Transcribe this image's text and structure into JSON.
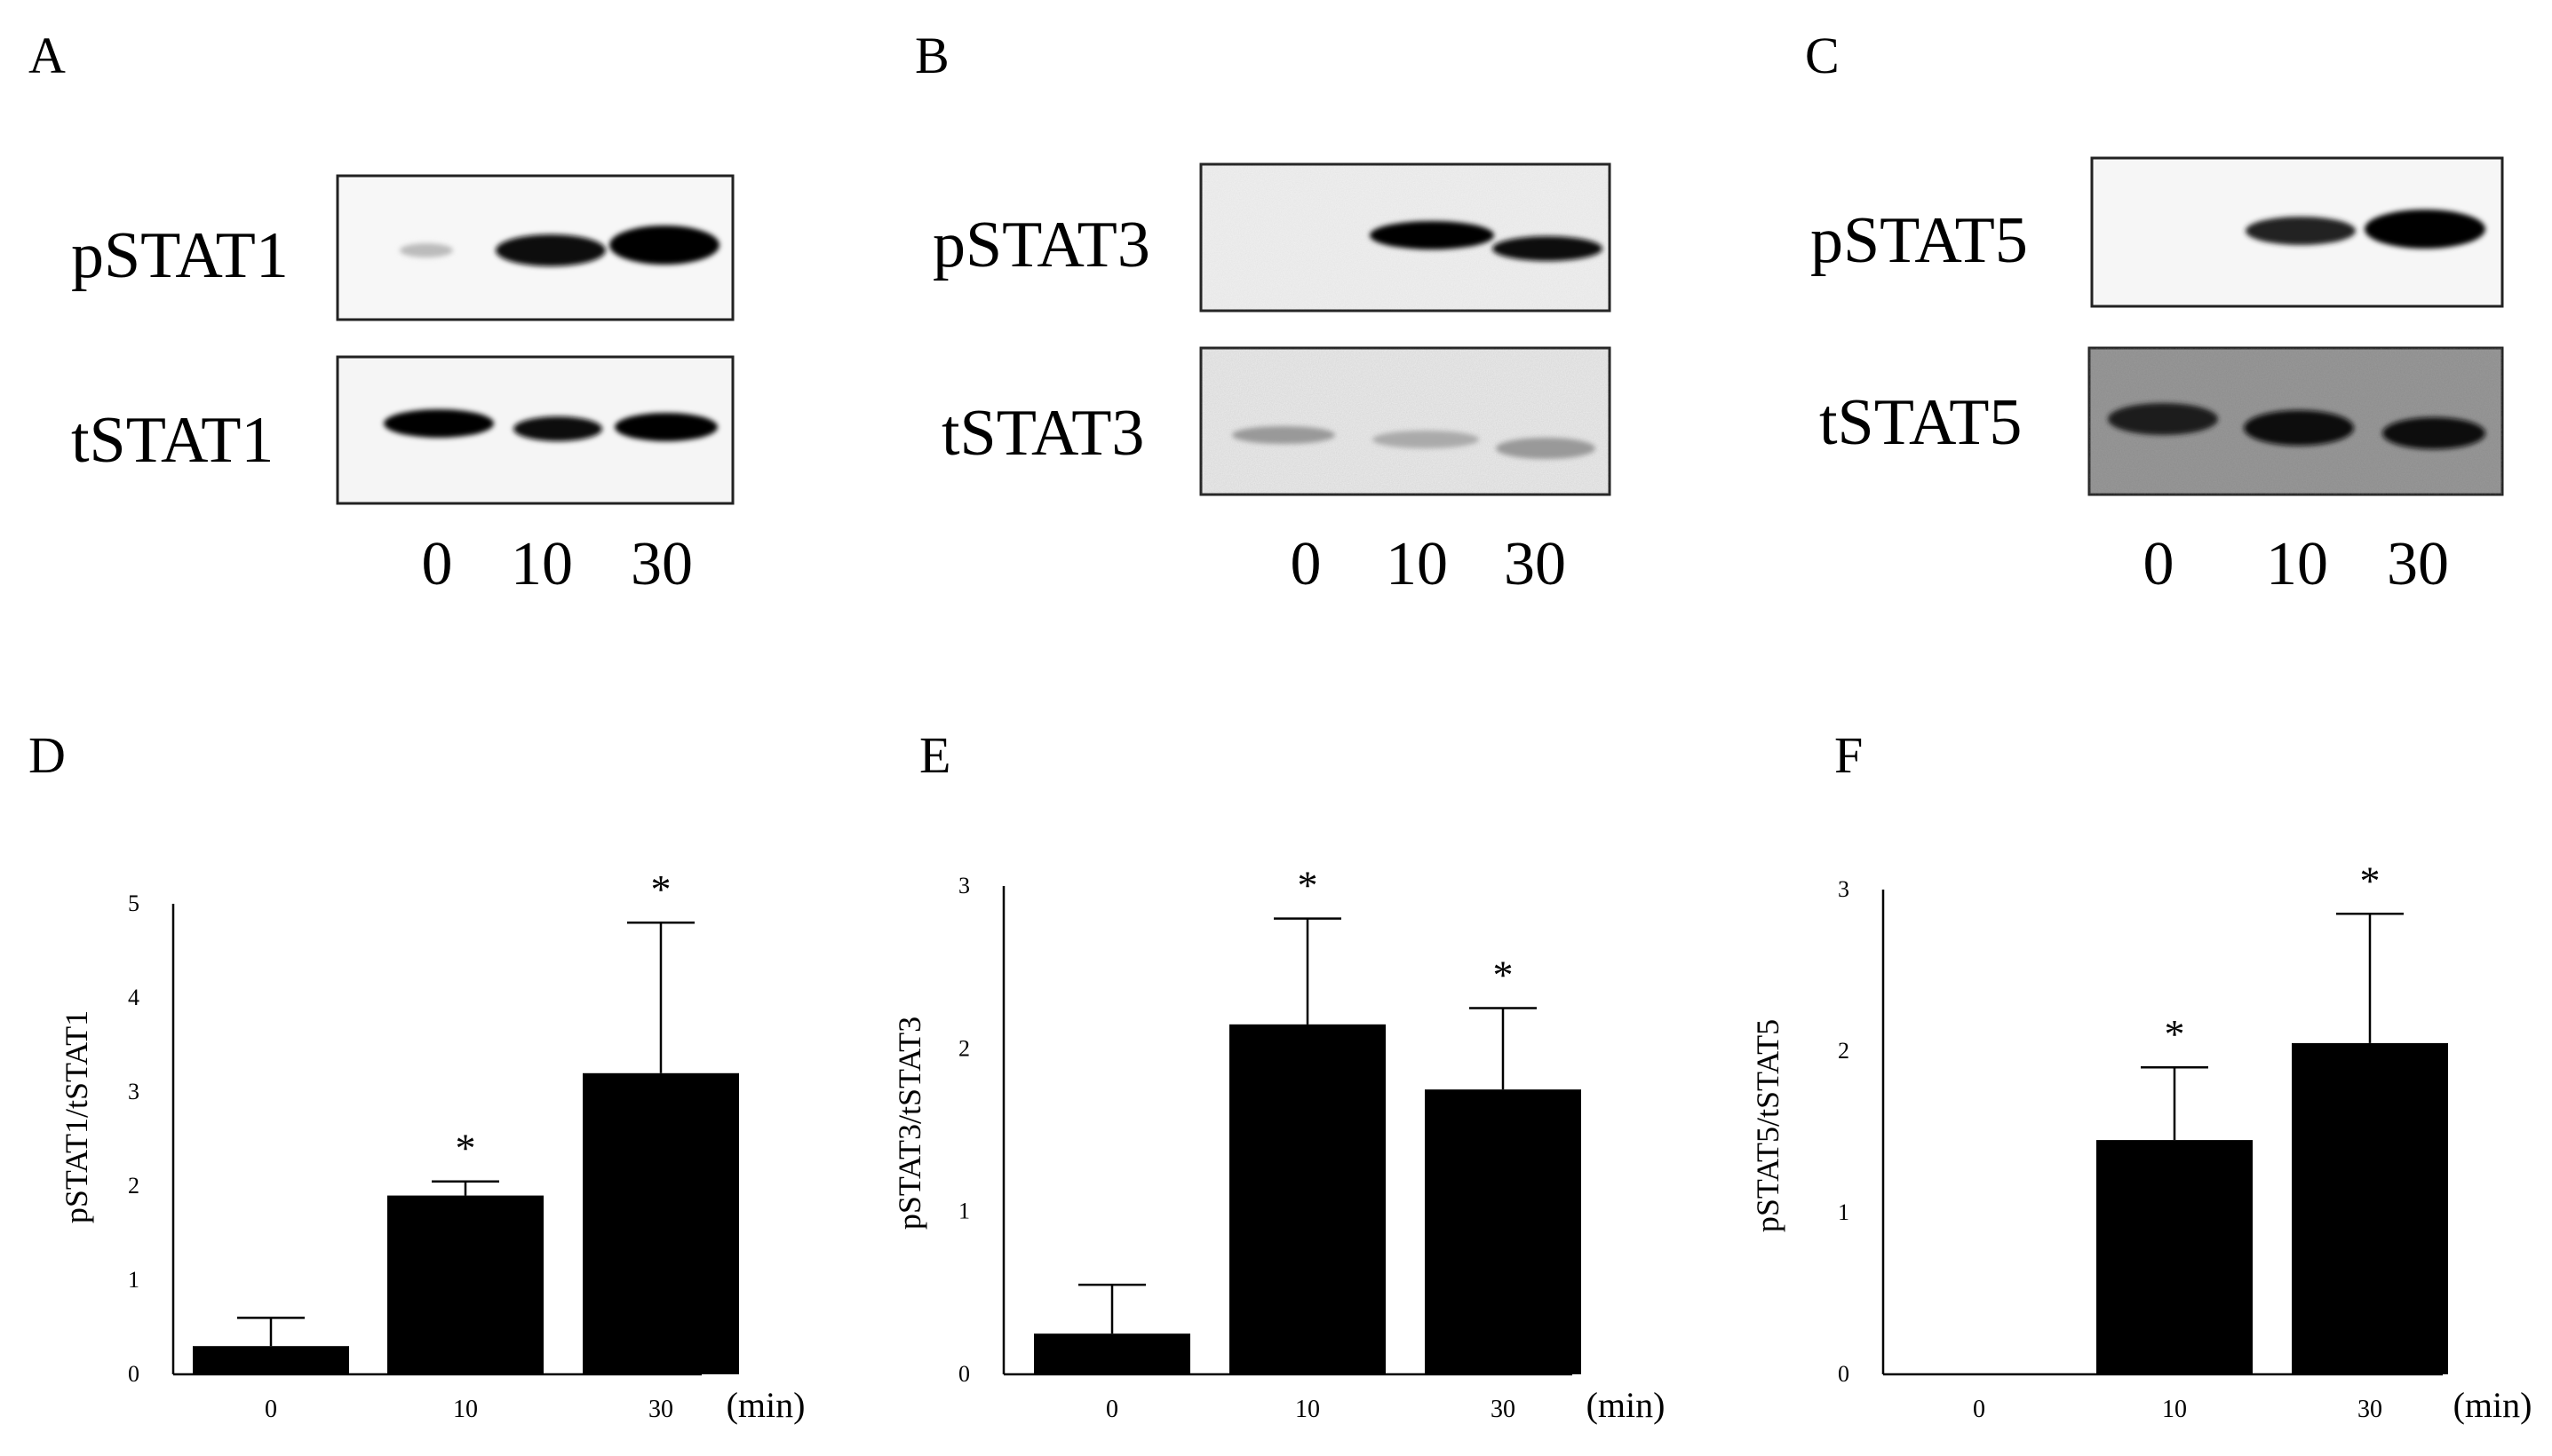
{
  "panels": {
    "blots": [
      {
        "letter": "A",
        "top_label": "pSTAT1",
        "bottom_label": "tSTAT1",
        "lanes": [
          "0",
          "10",
          "30"
        ]
      },
      {
        "letter": "B",
        "top_label": "pSTAT3",
        "bottom_label": "tSTAT3",
        "lanes": [
          "0",
          "10",
          "30"
        ]
      },
      {
        "letter": "C",
        "top_label": "pSTAT5",
        "bottom_label": "tSTAT5",
        "lanes": [
          "0",
          "10",
          "30"
        ]
      }
    ]
  },
  "chart_data": [
    {
      "type": "bar",
      "panel": "D",
      "categories": [
        "0",
        "10",
        "30"
      ],
      "values": [
        0.3,
        1.9,
        3.2
      ],
      "error_upper": [
        0.6,
        2.05,
        4.8
      ],
      "significance": [
        "",
        "*",
        "*"
      ],
      "ylabel": "pSTAT1/tSTAT1",
      "xunit": "(min)",
      "ylim": [
        0,
        5
      ],
      "yticks": [
        "0",
        "1",
        "2",
        "3",
        "4",
        "5"
      ]
    },
    {
      "type": "bar",
      "panel": "E",
      "categories": [
        "0",
        "10",
        "30"
      ],
      "values": [
        0.25,
        2.15,
        1.75
      ],
      "error_upper": [
        0.55,
        2.8,
        2.25
      ],
      "significance": [
        "",
        "*",
        "*"
      ],
      "ylabel": "pSTAT3/tSTAT3",
      "xunit": "(min)",
      "ylim": [
        0,
        3
      ],
      "yticks": [
        "0",
        "1",
        "2",
        "3"
      ]
    },
    {
      "type": "bar",
      "panel": "F",
      "categories": [
        "0",
        "10",
        "30"
      ],
      "values": [
        0,
        1.45,
        2.05
      ],
      "error_upper": [
        0,
        1.9,
        2.85
      ],
      "significance": [
        "",
        "*",
        "*"
      ],
      "ylabel": "pSTAT5/tSTAT5",
      "xunit": "(min)",
      "ylim": [
        0,
        3
      ],
      "yticks": [
        "0",
        "1",
        "2",
        "3"
      ]
    }
  ]
}
